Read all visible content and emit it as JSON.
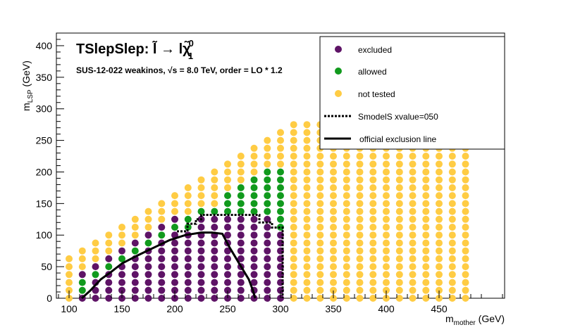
{
  "chart_data": {
    "type": "scatter",
    "title": "TSlepSlep: l̃ → lχ̃",
    "title_prefix": "TSlepSlep: ",
    "title_slep": "l̃",
    "title_arrow": " → l",
    "title_chi": "χ̃",
    "title_chi_sup": "0",
    "title_chi_sub": "1",
    "subtitle": "SUS-12-022  weakinos,  √s =  8.0 TeV, order =  LO * 1.2",
    "xlabel_main": "m",
    "xlabel_sub": "mother",
    "xlabel_unit": " (GeV)",
    "ylabel_main": "m",
    "ylabel_sub": "LSP",
    "ylabel_unit": " (GeV)",
    "xlim": [
      88,
      512
    ],
    "ylim": [
      0,
      420
    ],
    "xticks": [
      100,
      150,
      200,
      250,
      300,
      350,
      400,
      450
    ],
    "yticks": [
      0,
      50,
      100,
      150,
      200,
      250,
      300,
      350,
      400
    ],
    "colors": {
      "excluded": "#5e1366",
      "allowed": "#119a1d",
      "not_tested": "#ffcc44"
    },
    "legend": {
      "placement": "top-right",
      "entries": [
        "excluded",
        "allowed",
        "not tested",
        "SmodelS xvalue=050",
        "official exclusion line"
      ]
    },
    "grid": {
      "x_start": 100,
      "x_end": 475,
      "x_step": 12.5,
      "y_step": 12.5,
      "max_mlsp_offset": 37.5,
      "y_cap": 275
    },
    "classification": {
      "allowed": [
        [
          112.5,
          12.5
        ],
        [
          112.5,
          25
        ],
        [
          125,
          37.5
        ],
        [
          137.5,
          50
        ],
        [
          150,
          62.5
        ],
        [
          162.5,
          75
        ],
        [
          175,
          87.5
        ],
        [
          187.5,
          100
        ],
        [
          200,
          112.5
        ],
        [
          212.5,
          112.5
        ],
        [
          212.5,
          125
        ],
        [
          225,
          137.5
        ],
        [
          237.5,
          137.5
        ],
        [
          250,
          137.5
        ],
        [
          250,
          150
        ],
        [
          250,
          162.5
        ],
        [
          262.5,
          137.5
        ],
        [
          262.5,
          150
        ],
        [
          262.5,
          162.5
        ],
        [
          262.5,
          175
        ],
        [
          275,
          137.5
        ],
        [
          275,
          150
        ],
        [
          275,
          162.5
        ],
        [
          275,
          175
        ],
        [
          275,
          187.5
        ],
        [
          287.5,
          137.5
        ],
        [
          287.5,
          150
        ],
        [
          287.5,
          162.5
        ],
        [
          287.5,
          175
        ],
        [
          287.5,
          187.5
        ],
        [
          287.5,
          200
        ],
        [
          300,
          112.5
        ],
        [
          300,
          125
        ],
        [
          300,
          137.5
        ],
        [
          300,
          150
        ],
        [
          300,
          162.5
        ],
        [
          300,
          175
        ],
        [
          300,
          187.5
        ],
        [
          300,
          200
        ]
      ],
      "excluded_region": {
        "x_min": 112.5,
        "x_max": 300,
        "y_max": 125,
        "diagonal_offset": 75
      }
    },
    "series": [
      {
        "name": "SmodelS xvalue=050",
        "style": "dotted",
        "x": [
          202,
          212,
          212,
          220,
          220,
          225,
          225,
          280,
          280,
          292,
          292,
          302,
          302
        ],
        "y": [
          106,
          106,
          118,
          118,
          125,
          125,
          132,
          132,
          120,
          120,
          112,
          112,
          0
        ]
      },
      {
        "name": "official exclusion line",
        "style": "solid",
        "x": [
          112,
          120,
          130,
          140,
          150,
          165,
          180,
          195,
          210,
          225,
          235,
          245,
          252,
          262,
          270,
          274,
          276
        ],
        "y": [
          0,
          12,
          30,
          42,
          55,
          68,
          80,
          92,
          100,
          104,
          104,
          102,
          80,
          52,
          30,
          12,
          0
        ]
      }
    ]
  }
}
